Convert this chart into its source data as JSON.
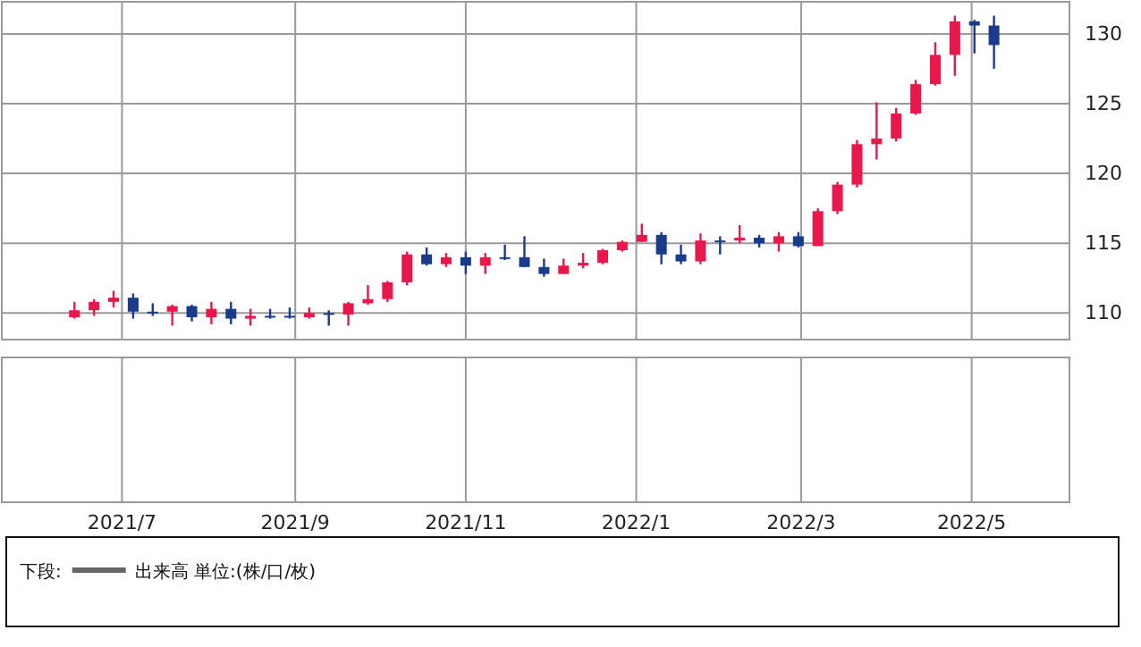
{
  "chart_data": {
    "type": "candlestick",
    "x": [
      "2021-06-14",
      "2021-06-21",
      "2021-06-28",
      "2021-07-05",
      "2021-07-12",
      "2021-07-19",
      "2021-07-26",
      "2021-08-02",
      "2021-08-09",
      "2021-08-16",
      "2021-08-23",
      "2021-08-30",
      "2021-09-06",
      "2021-09-13",
      "2021-09-20",
      "2021-09-27",
      "2021-10-04",
      "2021-10-11",
      "2021-10-18",
      "2021-10-25",
      "2021-11-01",
      "2021-11-08",
      "2021-11-15",
      "2021-11-22",
      "2021-11-29",
      "2021-12-06",
      "2021-12-13",
      "2021-12-20",
      "2021-12-27",
      "2022-01-03",
      "2022-01-10",
      "2022-01-17",
      "2022-01-24",
      "2022-01-31",
      "2022-02-07",
      "2022-02-14",
      "2022-02-21",
      "2022-02-28",
      "2022-03-07",
      "2022-03-14",
      "2022-03-21",
      "2022-03-28",
      "2022-04-04",
      "2022-04-11",
      "2022-04-18",
      "2022-04-25",
      "2022-05-02",
      "2022-05-09"
    ],
    "series": [
      {
        "axis": "y2",
        "ohlc": [
          [
            109.7,
            110.8,
            109.6,
            110.2
          ],
          [
            110.2,
            111.0,
            109.8,
            110.8
          ],
          [
            110.8,
            111.6,
            110.4,
            111.1
          ],
          [
            111.1,
            111.4,
            109.6,
            110.1
          ],
          [
            110.1,
            110.7,
            109.8,
            110.1
          ],
          [
            110.1,
            110.6,
            109.1,
            110.5
          ],
          [
            110.5,
            110.6,
            109.4,
            109.7
          ],
          [
            109.7,
            110.8,
            109.2,
            110.3
          ],
          [
            110.3,
            110.8,
            109.2,
            109.6
          ],
          [
            109.6,
            110.3,
            109.1,
            109.8
          ],
          [
            109.8,
            110.3,
            109.6,
            109.8
          ],
          [
            109.8,
            110.4,
            109.6,
            109.7
          ],
          [
            109.7,
            110.4,
            109.6,
            110.0
          ],
          [
            110.0,
            110.2,
            109.1,
            109.9
          ],
          [
            109.9,
            110.8,
            109.1,
            110.7
          ],
          [
            110.7,
            112.0,
            110.6,
            111.0
          ],
          [
            111.0,
            112.3,
            110.8,
            112.2
          ],
          [
            112.2,
            114.4,
            112.0,
            114.2
          ],
          [
            114.2,
            114.7,
            113.4,
            113.5
          ],
          [
            113.5,
            114.3,
            113.3,
            114.0
          ],
          [
            114.0,
            114.4,
            112.8,
            113.4
          ],
          [
            113.4,
            114.3,
            112.8,
            114.0
          ],
          [
            114.0,
            114.9,
            113.8,
            114.0
          ],
          [
            114.0,
            115.5,
            113.3,
            113.3
          ],
          [
            113.3,
            113.9,
            112.6,
            112.8
          ],
          [
            112.8,
            113.9,
            112.8,
            113.4
          ],
          [
            113.4,
            114.3,
            113.2,
            113.6
          ],
          [
            113.6,
            114.6,
            113.5,
            114.5
          ],
          [
            114.5,
            115.2,
            114.4,
            115.1
          ],
          [
            115.1,
            116.4,
            115.1,
            115.6
          ],
          [
            115.6,
            115.8,
            113.5,
            114.2
          ],
          [
            114.2,
            114.9,
            113.5,
            113.7
          ],
          [
            113.7,
            115.7,
            113.5,
            115.2
          ],
          [
            115.2,
            115.5,
            114.2,
            115.2
          ],
          [
            115.2,
            116.3,
            115.0,
            115.4
          ],
          [
            115.4,
            115.6,
            114.7,
            115.0
          ],
          [
            115.0,
            115.8,
            114.4,
            115.5
          ],
          [
            115.5,
            115.8,
            114.7,
            114.8
          ],
          [
            114.8,
            117.5,
            114.8,
            117.3
          ],
          [
            117.3,
            119.4,
            117.1,
            119.2
          ],
          [
            119.2,
            122.4,
            119.0,
            122.1
          ],
          [
            122.1,
            125.1,
            121.0,
            122.5
          ],
          [
            122.5,
            124.7,
            122.3,
            124.3
          ],
          [
            124.3,
            126.7,
            124.2,
            126.4
          ],
          [
            126.4,
            129.4,
            126.3,
            128.5
          ],
          [
            128.5,
            131.3,
            127.0,
            130.9
          ],
          [
            130.9,
            131.0,
            128.6,
            130.6
          ],
          [
            130.6,
            131.3,
            127.5,
            129.2
          ]
        ],
        "colors": [
          "#e8174c",
          "#e8174c",
          "#e8174c",
          "#1a3a8a",
          "#1a3a8a",
          "#e8174c",
          "#1a3a8a",
          "#e8174c",
          "#1a3a8a",
          "#e8174c",
          "#1a3a8a",
          "#1a3a8a",
          "#e8174c",
          "#1a3a8a",
          "#e8174c",
          "#e8174c",
          "#e8174c",
          "#e8174c",
          "#1a3a8a",
          "#e8174c",
          "#1a3a8a",
          "#e8174c",
          "#1a3a8a",
          "#1a3a8a",
          "#1a3a8a",
          "#e8174c",
          "#e8174c",
          "#e8174c",
          "#e8174c",
          "#e8174c",
          "#1a3a8a",
          "#1a3a8a",
          "#e8174c",
          "#1a3a8a",
          "#e8174c",
          "#1a3a8a",
          "#e8174c",
          "#1a3a8a",
          "#e8174c",
          "#e8174c",
          "#e8174c",
          "#e8174c",
          "#e8174c",
          "#e8174c",
          "#e8174c",
          "#e8174c",
          "#1a3a8a",
          "#1a3a8a"
        ]
      }
    ],
    "xlim": [
      "2021-05-19",
      "2022-06-05"
    ],
    "xticks": [
      {
        "value": "2021-07-01",
        "label": "2021/7"
      },
      {
        "value": "2021-09-01",
        "label": "2021/9"
      },
      {
        "value": "2021-11-01",
        "label": "2021/11"
      },
      {
        "value": "2022-01-01",
        "label": "2022/1"
      },
      {
        "value": "2022-03-01",
        "label": "2022/3"
      },
      {
        "value": "2022-05-01",
        "label": "2022/5"
      }
    ],
    "y2lim": [
      108.1,
      132.3
    ],
    "y2ticks": [
      110,
      115,
      120,
      125,
      130
    ],
    "grid": true,
    "annotations": [
      "下段:",
      "出来高 単位:(株/口/枚)"
    ]
  }
}
